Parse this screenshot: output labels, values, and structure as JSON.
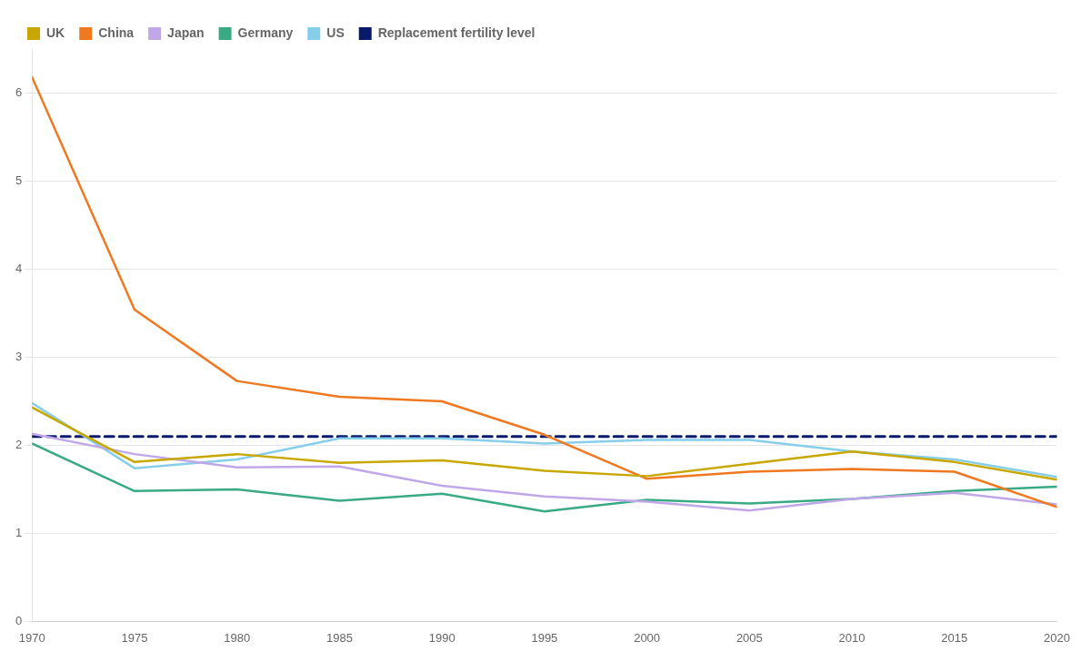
{
  "chart_data": {
    "type": "line",
    "x": [
      1970,
      1975,
      1980,
      1985,
      1990,
      1995,
      2000,
      2005,
      2010,
      2015,
      2020
    ],
    "series": [
      {
        "name": "Replacement fertility level",
        "color": "#0a1a6b",
        "line_style": "dashed",
        "values": [
          2.1,
          2.1,
          2.1,
          2.1,
          2.1,
          2.1,
          2.1,
          2.1,
          2.1,
          2.1,
          2.1
        ]
      },
      {
        "name": "US",
        "color": "#87CEEB",
        "line_style": "solid",
        "values": [
          2.48,
          1.74,
          1.84,
          2.08,
          2.08,
          2.02,
          2.06,
          2.06,
          1.93,
          1.84,
          1.64
        ]
      },
      {
        "name": "Germany",
        "color": "#3aaa85",
        "line_style": "solid",
        "values": [
          2.02,
          1.48,
          1.5,
          1.37,
          1.45,
          1.25,
          1.38,
          1.34,
          1.39,
          1.48,
          1.53
        ]
      },
      {
        "name": "Japan",
        "color": "#c0a8e8",
        "line_style": "solid",
        "values": [
          2.13,
          1.9,
          1.75,
          1.76,
          1.54,
          1.42,
          1.36,
          1.26,
          1.39,
          1.46,
          1.33
        ]
      },
      {
        "name": "China",
        "color": "#f07820",
        "line_style": "solid",
        "values": [
          6.18,
          3.54,
          2.73,
          2.55,
          2.5,
          2.12,
          1.62,
          1.7,
          1.73,
          1.7,
          1.3
        ]
      },
      {
        "name": "UK",
        "color": "#c8a800",
        "line_style": "solid",
        "values": [
          2.43,
          1.81,
          1.9,
          1.8,
          1.83,
          1.71,
          1.65,
          1.79,
          1.93,
          1.81,
          1.61
        ]
      }
    ],
    "xlim": [
      1970,
      2020
    ],
    "xticks": [
      1970,
      1975,
      1980,
      1985,
      1990,
      1995,
      2000,
      2005,
      2010,
      2015,
      2020
    ],
    "ylim": [
      0,
      6.5
    ],
    "yticks": [
      0,
      1,
      2,
      3,
      4,
      5,
      6
    ],
    "grid": "y",
    "legend": "upper left"
  }
}
